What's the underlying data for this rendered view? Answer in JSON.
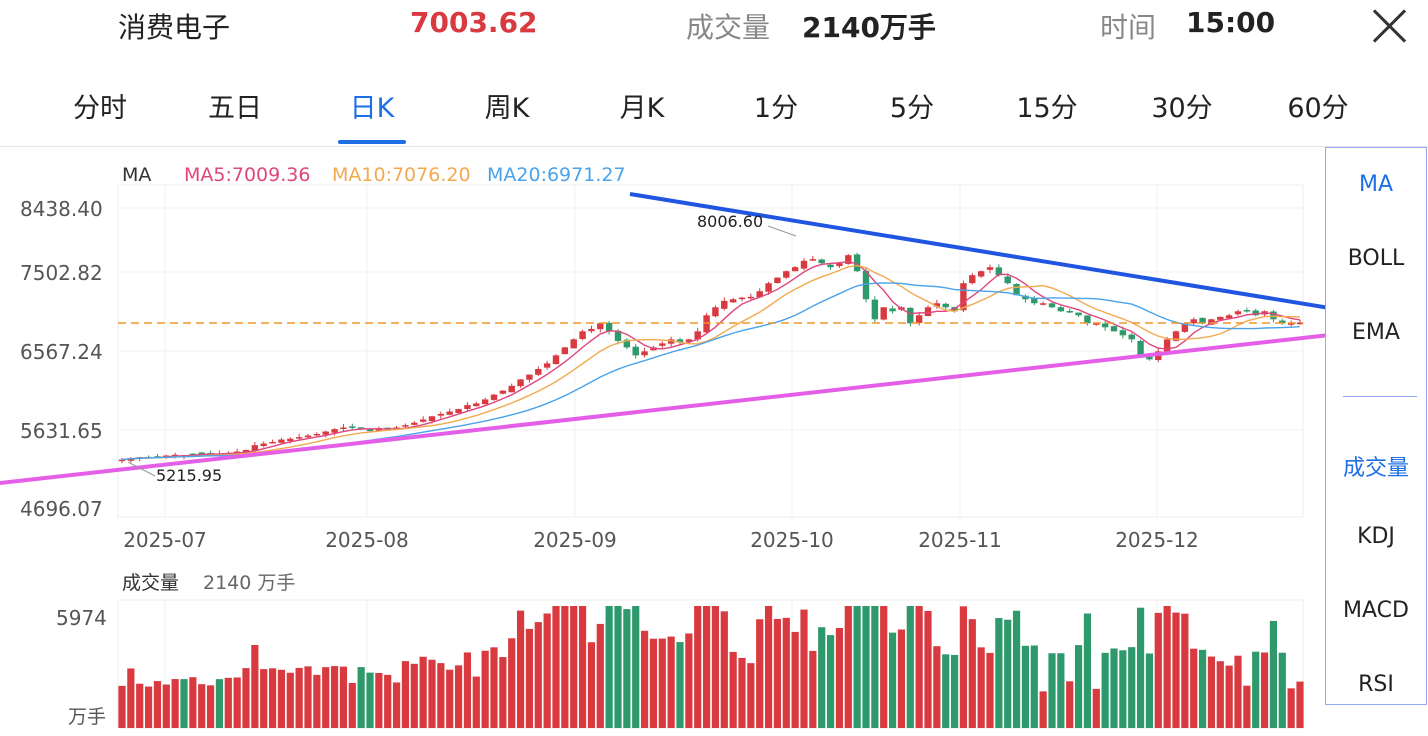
{
  "header": {
    "name": "消费电子",
    "price": "7003.62",
    "volume_label": "成交量",
    "volume_value": "2140万手",
    "time_label": "时间",
    "time_value": "15:00"
  },
  "tabs": [
    "分时",
    "五日",
    "日K",
    "周K",
    "月K",
    "1分",
    "5分",
    "15分",
    "30分",
    "60分"
  ],
  "active_tab": "日K",
  "indicators": {
    "ma_title": "MA",
    "ma5": "MA5:7009.36",
    "ma10": "MA10:7076.20",
    "ma20": "MA20:6971.27",
    "volume_title": "成交量",
    "volume_value": "2140 万手",
    "volume_max": "5974",
    "volume_unit": "万手"
  },
  "side_menu": [
    "MA",
    "BOLL",
    "EMA",
    "成交量",
    "KDJ",
    "MACD",
    "RSI"
  ],
  "colors": {
    "up": "#d83a40",
    "down": "#2e9a6b",
    "ma5": "#e0457e",
    "ma10": "#f2a94f",
    "ma20": "#4aa3ea",
    "resistance": "#1f55e0",
    "support": "#e45ee8",
    "accent": "#1e6fe6"
  },
  "chart_data": {
    "type": "candlestick",
    "y_ticks": [
      "8438.40",
      "7502.82",
      "6567.24",
      "5631.65",
      "4696.07"
    ],
    "ylim": [
      4696.07,
      8438.4
    ],
    "x_ticks": [
      "2025-07",
      "2025-08",
      "2025-09",
      "2025-10",
      "2025-11",
      "2025-12"
    ],
    "annotations": {
      "high": "8006.60",
      "low": "5215.95"
    },
    "last_close": 7003.62,
    "closes": [
      5300,
      5320,
      5330,
      5330,
      5340,
      5350,
      5360,
      5355,
      5370,
      5380,
      5380,
      5370,
      5380,
      5400,
      5420,
      5480,
      5500,
      5520,
      5550,
      5560,
      5580,
      5600,
      5620,
      5650,
      5680,
      5700,
      5700,
      5680,
      5660,
      5680,
      5690,
      5700,
      5730,
      5760,
      5800,
      5840,
      5870,
      5900,
      5930,
      5980,
      6000,
      6050,
      6110,
      6160,
      6220,
      6300,
      6360,
      6430,
      6500,
      6600,
      6700,
      6800,
      6900,
      6930,
      7000,
      6900,
      6780,
      6700,
      6600,
      6650,
      6700,
      6750,
      6800,
      6760,
      6800,
      6900,
      7100,
      7200,
      7280,
      7300,
      7320,
      7330,
      7400,
      7500,
      7570,
      7650,
      7700,
      7780,
      7800,
      7750,
      7700,
      7750,
      7850,
      7650,
      7300,
      7050,
      7200,
      7150,
      7200,
      7000,
      7100,
      7200,
      7250,
      7200,
      7150,
      7500,
      7600,
      7650,
      7700,
      7600,
      7500,
      7350,
      7300,
      7250,
      7250,
      7200,
      7150,
      7150,
      7100,
      7000,
      7000,
      6950,
      6900,
      6850,
      6800,
      6600,
      6550,
      6650,
      6800,
      6900,
      7000,
      7050,
      7000,
      7050,
      7080,
      7100,
      7150,
      7150,
      7100,
      7150,
      7050,
      7000,
      7000,
      7010
    ]
  }
}
